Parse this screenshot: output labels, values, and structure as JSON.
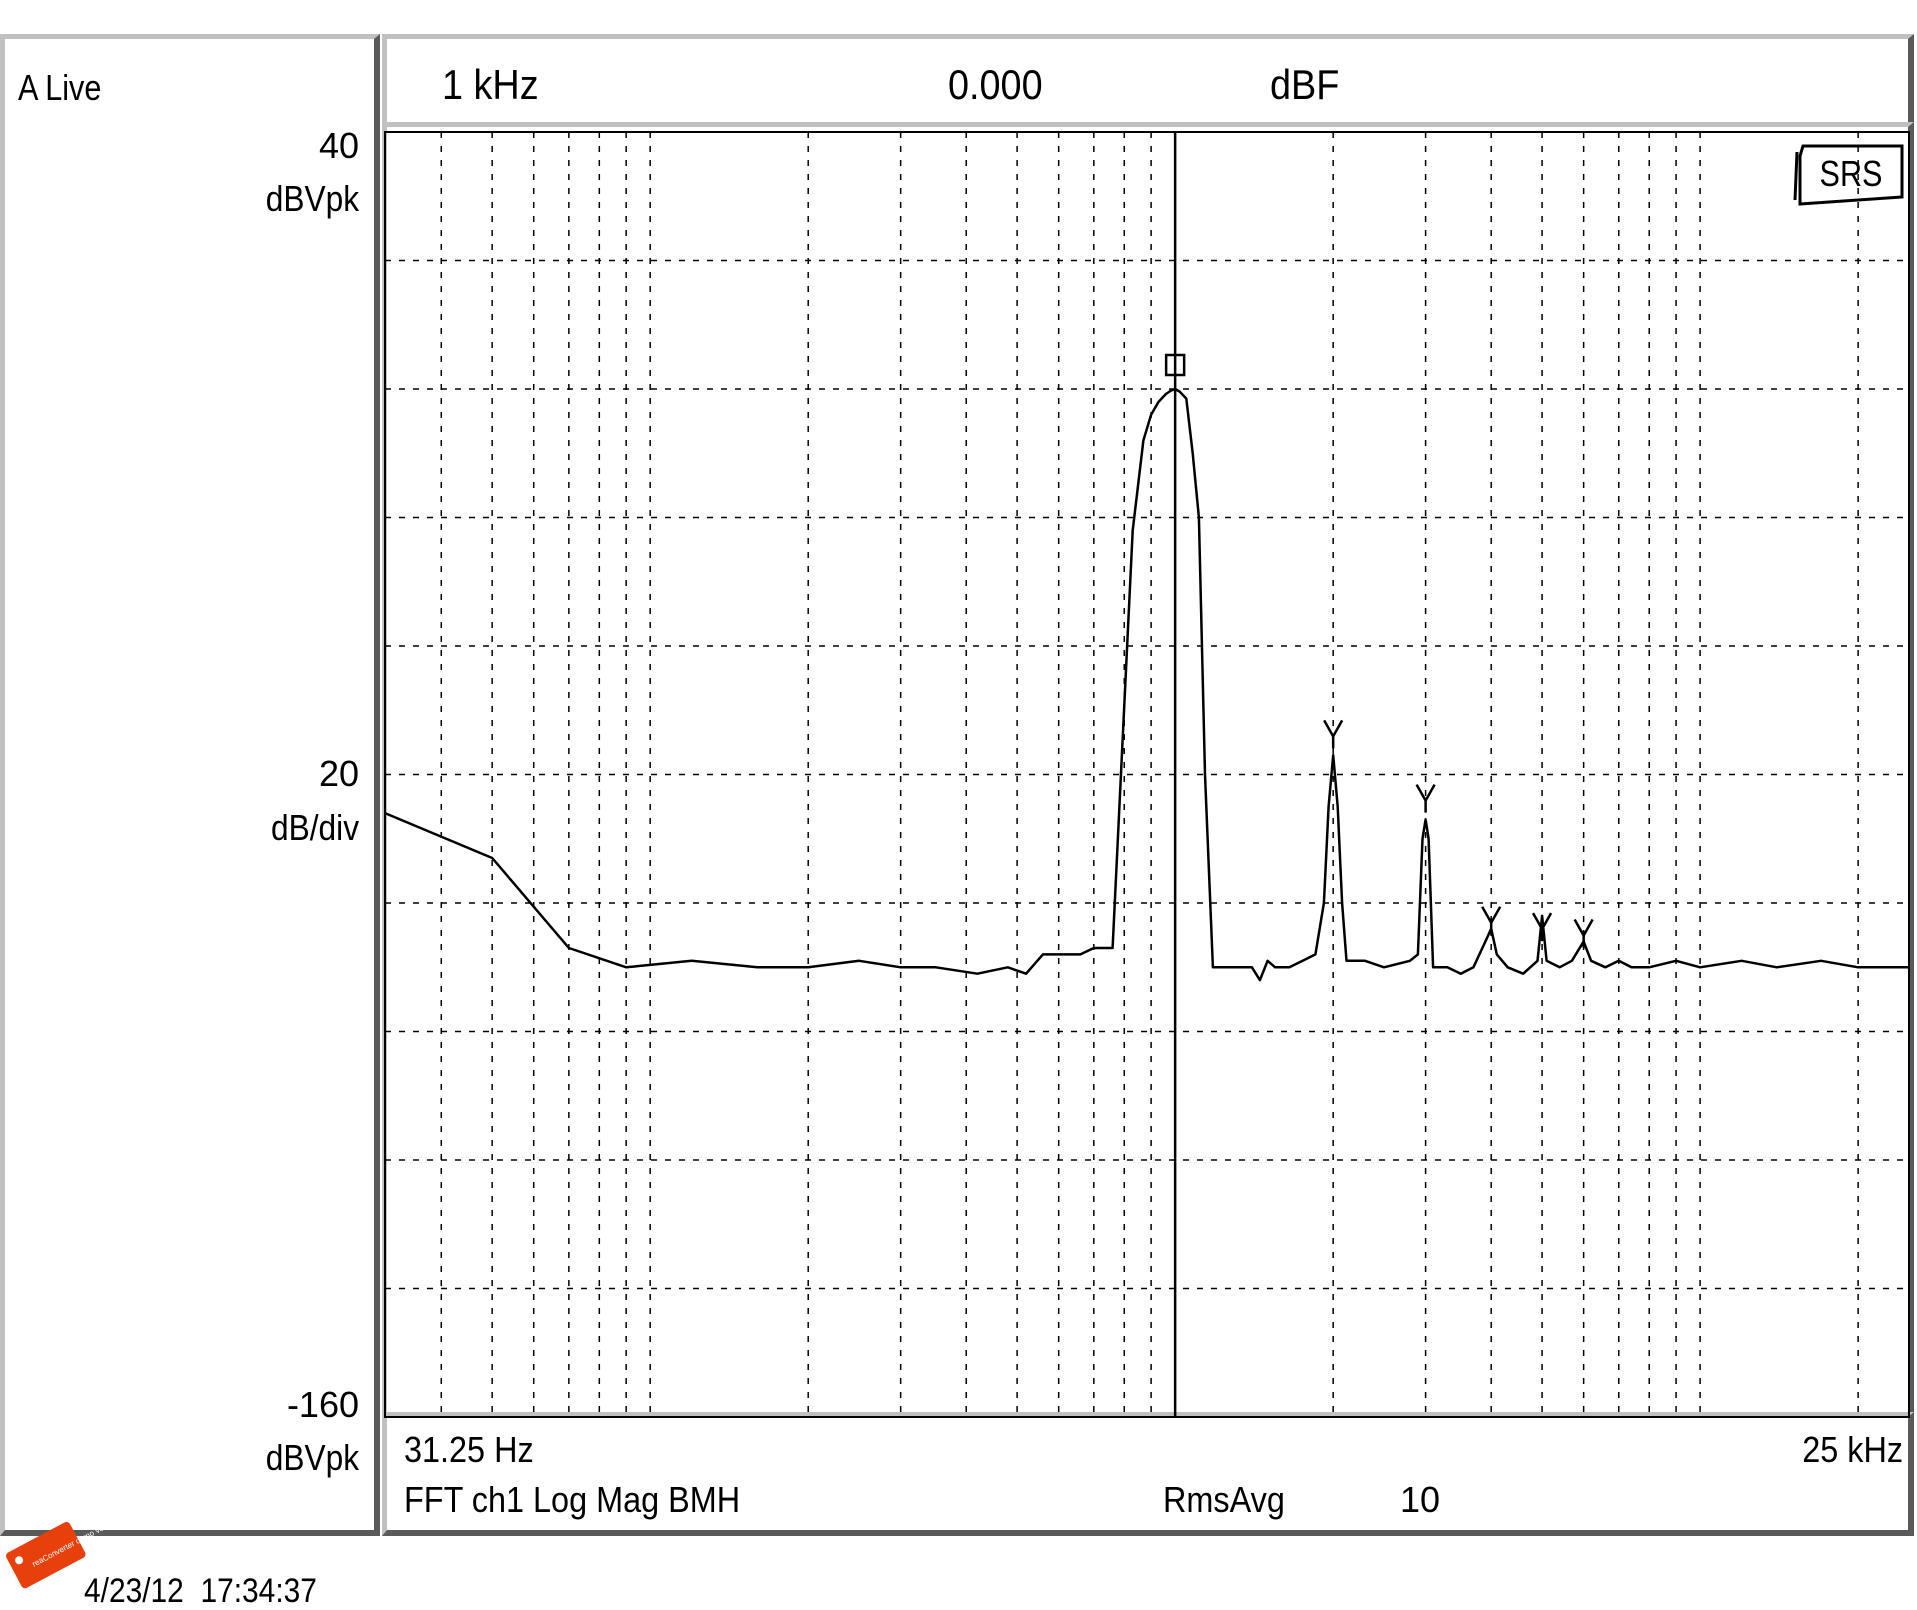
{
  "header": {
    "title": "A Live",
    "marker_freq": "1 kHz",
    "marker_value": "0.000",
    "marker_unit": "dBF"
  },
  "y_axis": {
    "top_value": "40",
    "top_unit": "dBVpk",
    "scale_value": "20",
    "scale_unit": "dB/div",
    "bottom_value": "-160",
    "bottom_unit": "dBVpk"
  },
  "footer": {
    "start_freq": "31.25 Hz",
    "stop_freq": "25 kHz",
    "measurement": "FFT ch1 Log Mag BMH",
    "avg_mode": "RmsAvg",
    "avg_count": "10"
  },
  "logo": "SRS",
  "stamp": {
    "watermark": "reaConverter demo version",
    "timestamp": "4/23/12  17:34:37"
  },
  "colors": {
    "trace": "#000000",
    "grid": "#000000",
    "background": "#ffffff",
    "bevel_light": "#c0c0c0",
    "bevel_dark": "#5a5a5a",
    "watermark": "#e8400c"
  },
  "chart_data": {
    "type": "line",
    "title": "",
    "xlabel": "",
    "ylabel": "dBVpk",
    "x_scale": "log",
    "xlim": [
      31.25,
      25000
    ],
    "ylim": [
      -160,
      40
    ],
    "y_div": 20,
    "grid": true,
    "marker": {
      "x": 1000,
      "y": 0.0
    },
    "harmonic_markers": [
      {
        "x": 2000,
        "y": -55
      },
      {
        "x": 3000,
        "y": -65
      },
      {
        "x": 4000,
        "y": -84
      },
      {
        "x": 5000,
        "y": -85
      },
      {
        "x": 6000,
        "y": -86
      }
    ],
    "series": [
      {
        "values": [
          [
            31.25,
            -66
          ],
          [
            50,
            -73
          ],
          [
            70,
            -87
          ],
          [
            90,
            -90
          ],
          [
            120,
            -89
          ],
          [
            160,
            -90
          ],
          [
            200,
            -90
          ],
          [
            250,
            -89
          ],
          [
            300,
            -90
          ],
          [
            350,
            -90
          ],
          [
            420,
            -91
          ],
          [
            480,
            -90
          ],
          [
            520,
            -91
          ],
          [
            560,
            -88
          ],
          [
            620,
            -88
          ],
          [
            660,
            -88
          ],
          [
            700,
            -87
          ],
          [
            730,
            -87
          ],
          [
            760,
            -87
          ],
          [
            830,
            -22
          ],
          [
            870,
            -8
          ],
          [
            900,
            -4
          ],
          [
            930,
            -2
          ],
          [
            960,
            -0.8
          ],
          [
            980,
            -0.3
          ],
          [
            1000,
            0
          ],
          [
            1020,
            -0.4
          ],
          [
            1050,
            -1.5
          ],
          [
            1080,
            -10
          ],
          [
            1110,
            -20
          ],
          [
            1140,
            -60
          ],
          [
            1180,
            -90
          ],
          [
            1300,
            -90
          ],
          [
            1400,
            -90
          ],
          [
            1450,
            -92
          ],
          [
            1500,
            -89
          ],
          [
            1550,
            -90
          ],
          [
            1650,
            -90
          ],
          [
            1750,
            -89
          ],
          [
            1850,
            -88
          ],
          [
            1920,
            -80
          ],
          [
            1960,
            -65
          ],
          [
            2000,
            -57
          ],
          [
            2040,
            -65
          ],
          [
            2080,
            -80
          ],
          [
            2120,
            -89
          ],
          [
            2300,
            -89
          ],
          [
            2500,
            -90
          ],
          [
            2800,
            -89
          ],
          [
            2900,
            -88
          ],
          [
            2960,
            -70
          ],
          [
            3000,
            -67
          ],
          [
            3040,
            -70
          ],
          [
            3100,
            -90
          ],
          [
            3300,
            -90
          ],
          [
            3500,
            -91
          ],
          [
            3700,
            -90
          ],
          [
            3900,
            -86
          ],
          [
            4000,
            -84
          ],
          [
            4100,
            -88
          ],
          [
            4300,
            -90
          ],
          [
            4600,
            -91
          ],
          [
            4900,
            -89
          ],
          [
            5000,
            -82
          ],
          [
            5100,
            -89
          ],
          [
            5400,
            -90
          ],
          [
            5700,
            -89
          ],
          [
            6000,
            -86
          ],
          [
            6200,
            -89
          ],
          [
            6600,
            -90
          ],
          [
            7000,
            -89
          ],
          [
            7400,
            -90
          ],
          [
            8000,
            -90
          ],
          [
            9000,
            -89
          ],
          [
            10000,
            -90
          ],
          [
            12000,
            -89
          ],
          [
            14000,
            -90
          ],
          [
            17000,
            -89
          ],
          [
            20000,
            -90
          ],
          [
            25000,
            -90
          ]
        ]
      }
    ]
  }
}
